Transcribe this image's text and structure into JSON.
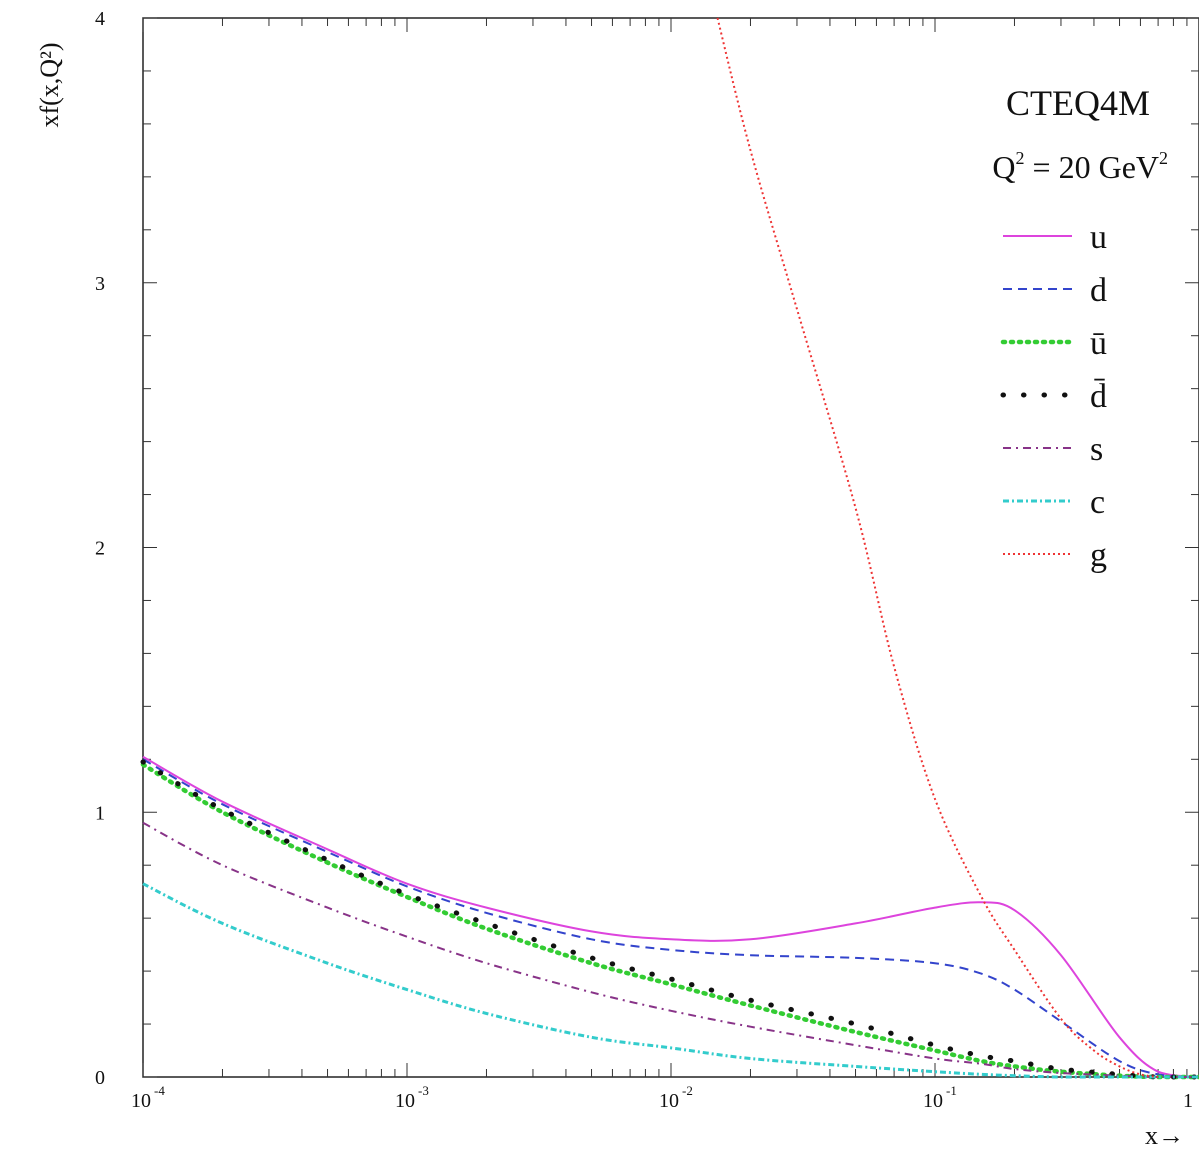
{
  "chart_data": {
    "type": "line",
    "title": "CTEQ4M",
    "subtitle": {
      "q": "Q",
      "q_exp": "2",
      "mid": " = 20 GeV",
      "gev_exp": "2"
    },
    "ylabel": "xf(x,Q²)",
    "xlabel": "x→",
    "xscale": "log",
    "xlim": [
      0.0001,
      1
    ],
    "ylim": [
      0,
      4
    ],
    "x_ticks": [
      {
        "base": "10",
        "exp": "-4",
        "value": 0.0001
      },
      {
        "base": "10",
        "exp": "-3",
        "value": 0.001
      },
      {
        "base": "10",
        "exp": "-2",
        "value": 0.01
      },
      {
        "base": "10",
        "exp": "-1",
        "value": 0.1
      },
      {
        "base": "1",
        "exp": "",
        "value": 1
      }
    ],
    "y_ticks": [
      "0",
      "1",
      "2",
      "3",
      "4"
    ],
    "legend_position": "top-right",
    "x": [
      0.0001,
      0.0002,
      0.0005,
      0.001,
      0.002,
      0.005,
      0.01,
      0.02,
      0.05,
      0.1,
      0.15,
      0.2,
      0.3,
      0.5,
      0.7,
      1
    ],
    "series": [
      {
        "name": "u",
        "color": "#dd44dd",
        "dash": "solid",
        "values": [
          1.21,
          1.04,
          0.86,
          0.73,
          0.64,
          0.55,
          0.52,
          0.52,
          0.58,
          0.64,
          0.66,
          0.63,
          0.46,
          0.15,
          0.02,
          0.0
        ]
      },
      {
        "name": "d",
        "color": "#3344cc",
        "dash": "dashed",
        "values": [
          1.2,
          1.03,
          0.85,
          0.72,
          0.62,
          0.52,
          0.48,
          0.46,
          0.45,
          0.43,
          0.39,
          0.33,
          0.21,
          0.06,
          0.01,
          0.0
        ]
      },
      {
        "name": "ū",
        "color": "#33cc33",
        "dash": "dotted",
        "values": [
          1.18,
          1.0,
          0.81,
          0.68,
          0.56,
          0.43,
          0.35,
          0.27,
          0.17,
          0.1,
          0.06,
          0.04,
          0.02,
          0.005,
          0.0,
          0.0
        ]
      },
      {
        "name": "d̄",
        "color": "#111111",
        "dash": "sparse-dots",
        "values": [
          1.19,
          1.01,
          0.82,
          0.69,
          0.58,
          0.45,
          0.37,
          0.29,
          0.2,
          0.12,
          0.08,
          0.06,
          0.03,
          0.01,
          0.0,
          0.0
        ]
      },
      {
        "name": "s",
        "color": "#883388",
        "dash": "dash-dot",
        "values": [
          0.96,
          0.8,
          0.64,
          0.53,
          0.43,
          0.32,
          0.25,
          0.19,
          0.12,
          0.07,
          0.05,
          0.03,
          0.015,
          0.005,
          0.0,
          0.0
        ]
      },
      {
        "name": "c",
        "color": "#33cccc",
        "dash": "dash-dot-dense",
        "values": [
          0.73,
          0.58,
          0.43,
          0.33,
          0.24,
          0.15,
          0.11,
          0.07,
          0.04,
          0.02,
          0.01,
          0.005,
          0.0,
          0.0,
          0.0,
          0.0
        ]
      },
      {
        "name": "g",
        "color": "#ee3333",
        "dash": "fine-dotted",
        "x": [
          0.015,
          0.02,
          0.03,
          0.05,
          0.07,
          0.1,
          0.15,
          0.2,
          0.3,
          0.4,
          0.5,
          0.6,
          0.7
        ],
        "values": [
          4.0,
          3.5,
          2.9,
          2.15,
          1.55,
          1.05,
          0.68,
          0.48,
          0.22,
          0.1,
          0.04,
          0.01,
          0.0
        ]
      }
    ]
  }
}
